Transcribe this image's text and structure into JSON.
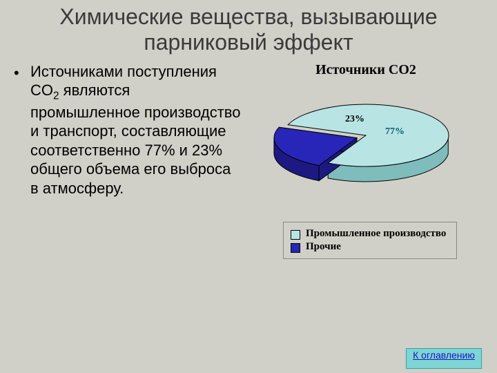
{
  "slide": {
    "background_color": "#d0d0c8",
    "title": "Химические вещества, вызывающие парниковый эффект",
    "title_color": "#3a3a3a",
    "bullet_html": "Источниками поступления СO<sub>2</sub> являются промышленное производство и транспорт, составляющие соответственно 77% и 23% общего объема его выброса в атмосферу.",
    "bullet_color": "#000000"
  },
  "chart": {
    "title": "Источники СО2",
    "title_color": "#000000",
    "type": "pie-3d",
    "slices": [
      {
        "label": "Промышленное производство",
        "value": 77,
        "pct_text": "77%",
        "color": "#b8e4e4",
        "side_color": "#7fbcbc"
      },
      {
        "label": "Прочие",
        "value": 23,
        "pct_text": "23%",
        "color": "#2826b8",
        "side_color": "#1c1a82"
      }
    ],
    "outline_color": "#000000",
    "label_colors": {
      "big": "#0a5a6a",
      "small": "#000000"
    },
    "legend_border": "#888888"
  },
  "nav": {
    "toc_label": "К оглавлению",
    "toc_bg": "#7fd4d4",
    "toc_text_color": "#1818c0",
    "toc_border": "#2aa8a8"
  }
}
